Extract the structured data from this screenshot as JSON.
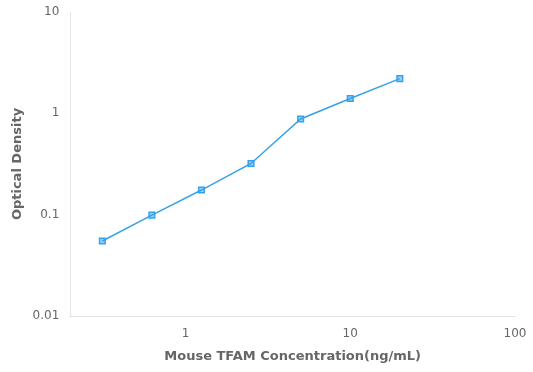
{
  "chart_data": {
    "type": "line",
    "x": [
      0.313,
      0.625,
      1.25,
      2.5,
      5.0,
      10.0,
      20.0
    ],
    "values": [
      0.055,
      0.099,
      0.175,
      0.32,
      0.88,
      1.4,
      2.2
    ],
    "xlabel": "Mouse TFAM Concentration(ng/mL)",
    "ylabel": "Optical Density",
    "log": true,
    "xlim": [
      0.2,
      100
    ],
    "ylim": [
      0.01,
      10
    ],
    "xticks": [
      1,
      10,
      100
    ],
    "yticks": [
      0.01,
      0.1,
      1,
      10
    ],
    "marker": "square",
    "grid": false
  }
}
